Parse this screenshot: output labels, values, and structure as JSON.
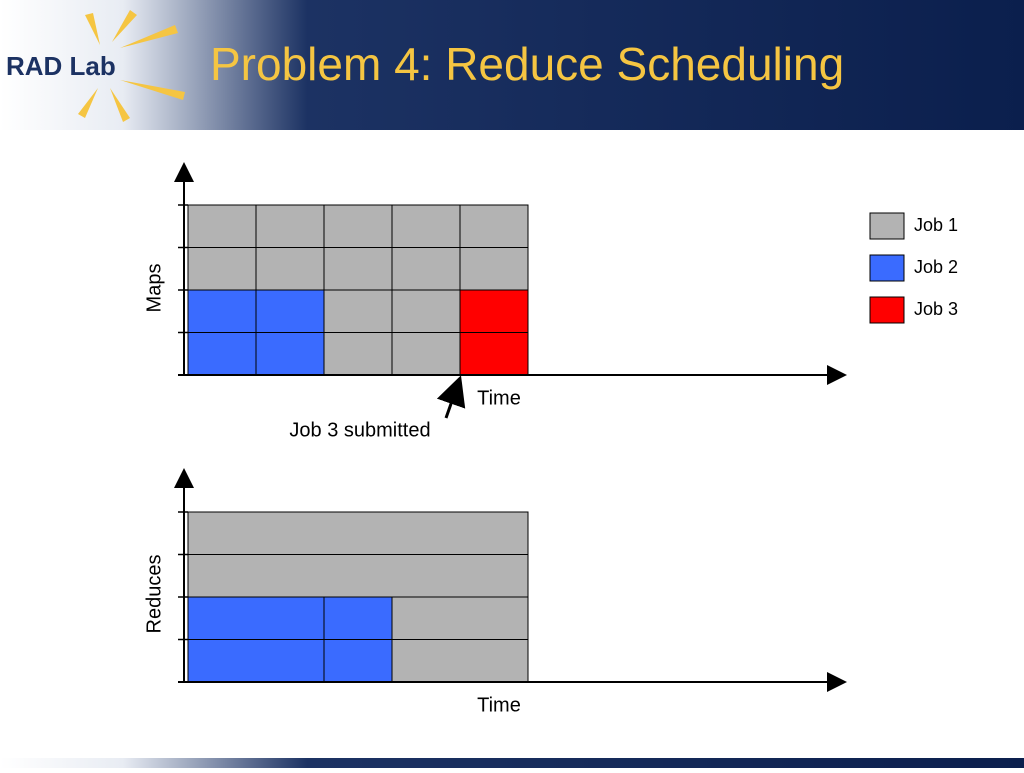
{
  "header": {
    "logo": "RAD Lab",
    "title": "Problem 4: Reduce Scheduling"
  },
  "legend": [
    {
      "label": "Job 1",
      "color": "#b3b3b3"
    },
    {
      "label": "Job 2",
      "color": "#3a6bff"
    },
    {
      "label": "Job 3",
      "color": "#ff0000"
    }
  ],
  "maps_chart": {
    "y_label": "Maps",
    "x_label": "Time",
    "annotation": "Job 3 submitted"
  },
  "reduces_chart": {
    "y_label": "Reduces",
    "x_label": "Time"
  }
}
